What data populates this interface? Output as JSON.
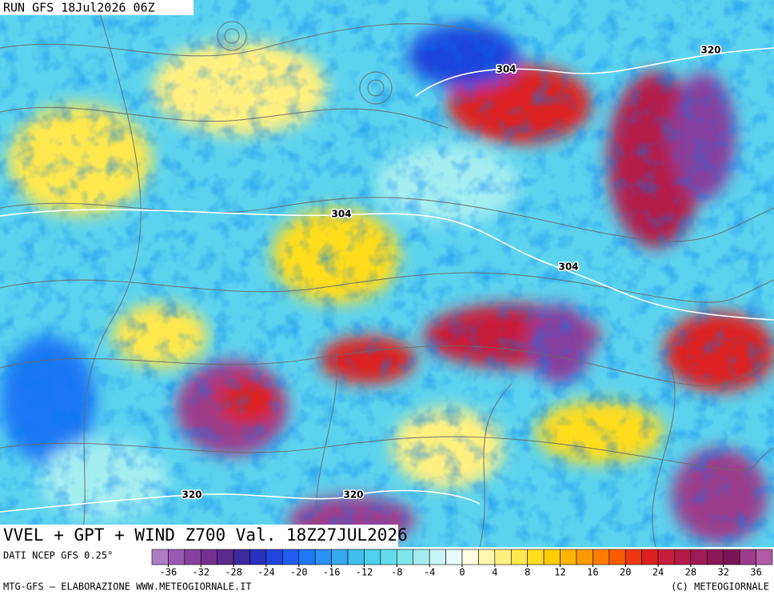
{
  "header": {
    "run": "RUN GFS 18Jul2026 06Z"
  },
  "map": {
    "contour_labels": [
      "304",
      "304",
      "304",
      "320",
      "320",
      "320"
    ]
  },
  "title": "VVEL + GPT + WIND Z700 Val. 18Z27JUL2026",
  "source": "DATI NCEP GFS 0.25°",
  "colorbar": {
    "range": [
      -38,
      38
    ],
    "ticks": [
      -36,
      -32,
      -28,
      -24,
      -20,
      -16,
      -12,
      -8,
      -4,
      0,
      4,
      8,
      12,
      16,
      20,
      24,
      28,
      32,
      36
    ],
    "colors": [
      "#b07cc6",
      "#9a5ab4",
      "#86419f",
      "#743190",
      "#5c2a8c",
      "#3b2aa0",
      "#2a30c0",
      "#1f45dc",
      "#1f5ef0",
      "#1f78f5",
      "#2b90f5",
      "#36a8f0",
      "#3fbff0",
      "#4ed0ee",
      "#62dcec",
      "#7fe6ec",
      "#a4eef0",
      "#c8f6f6",
      "#e8fbfb",
      "#fffde0",
      "#fff6b0",
      "#fff080",
      "#ffe84d",
      "#ffdc1e",
      "#ffcc00",
      "#ffb400",
      "#ff9a00",
      "#ff7e00",
      "#f85c00",
      "#ec3a10",
      "#dc2020",
      "#c81e3a",
      "#b41a4a",
      "#a01a54",
      "#8c1858",
      "#7a1456",
      "#9c3c8c",
      "#b05aa8"
    ]
  },
  "footer": {
    "left": "MTG-GFS — ELABORAZIONE WWW.METEOGIORNALE.IT",
    "right": "(C) METEOGIORNALE"
  }
}
